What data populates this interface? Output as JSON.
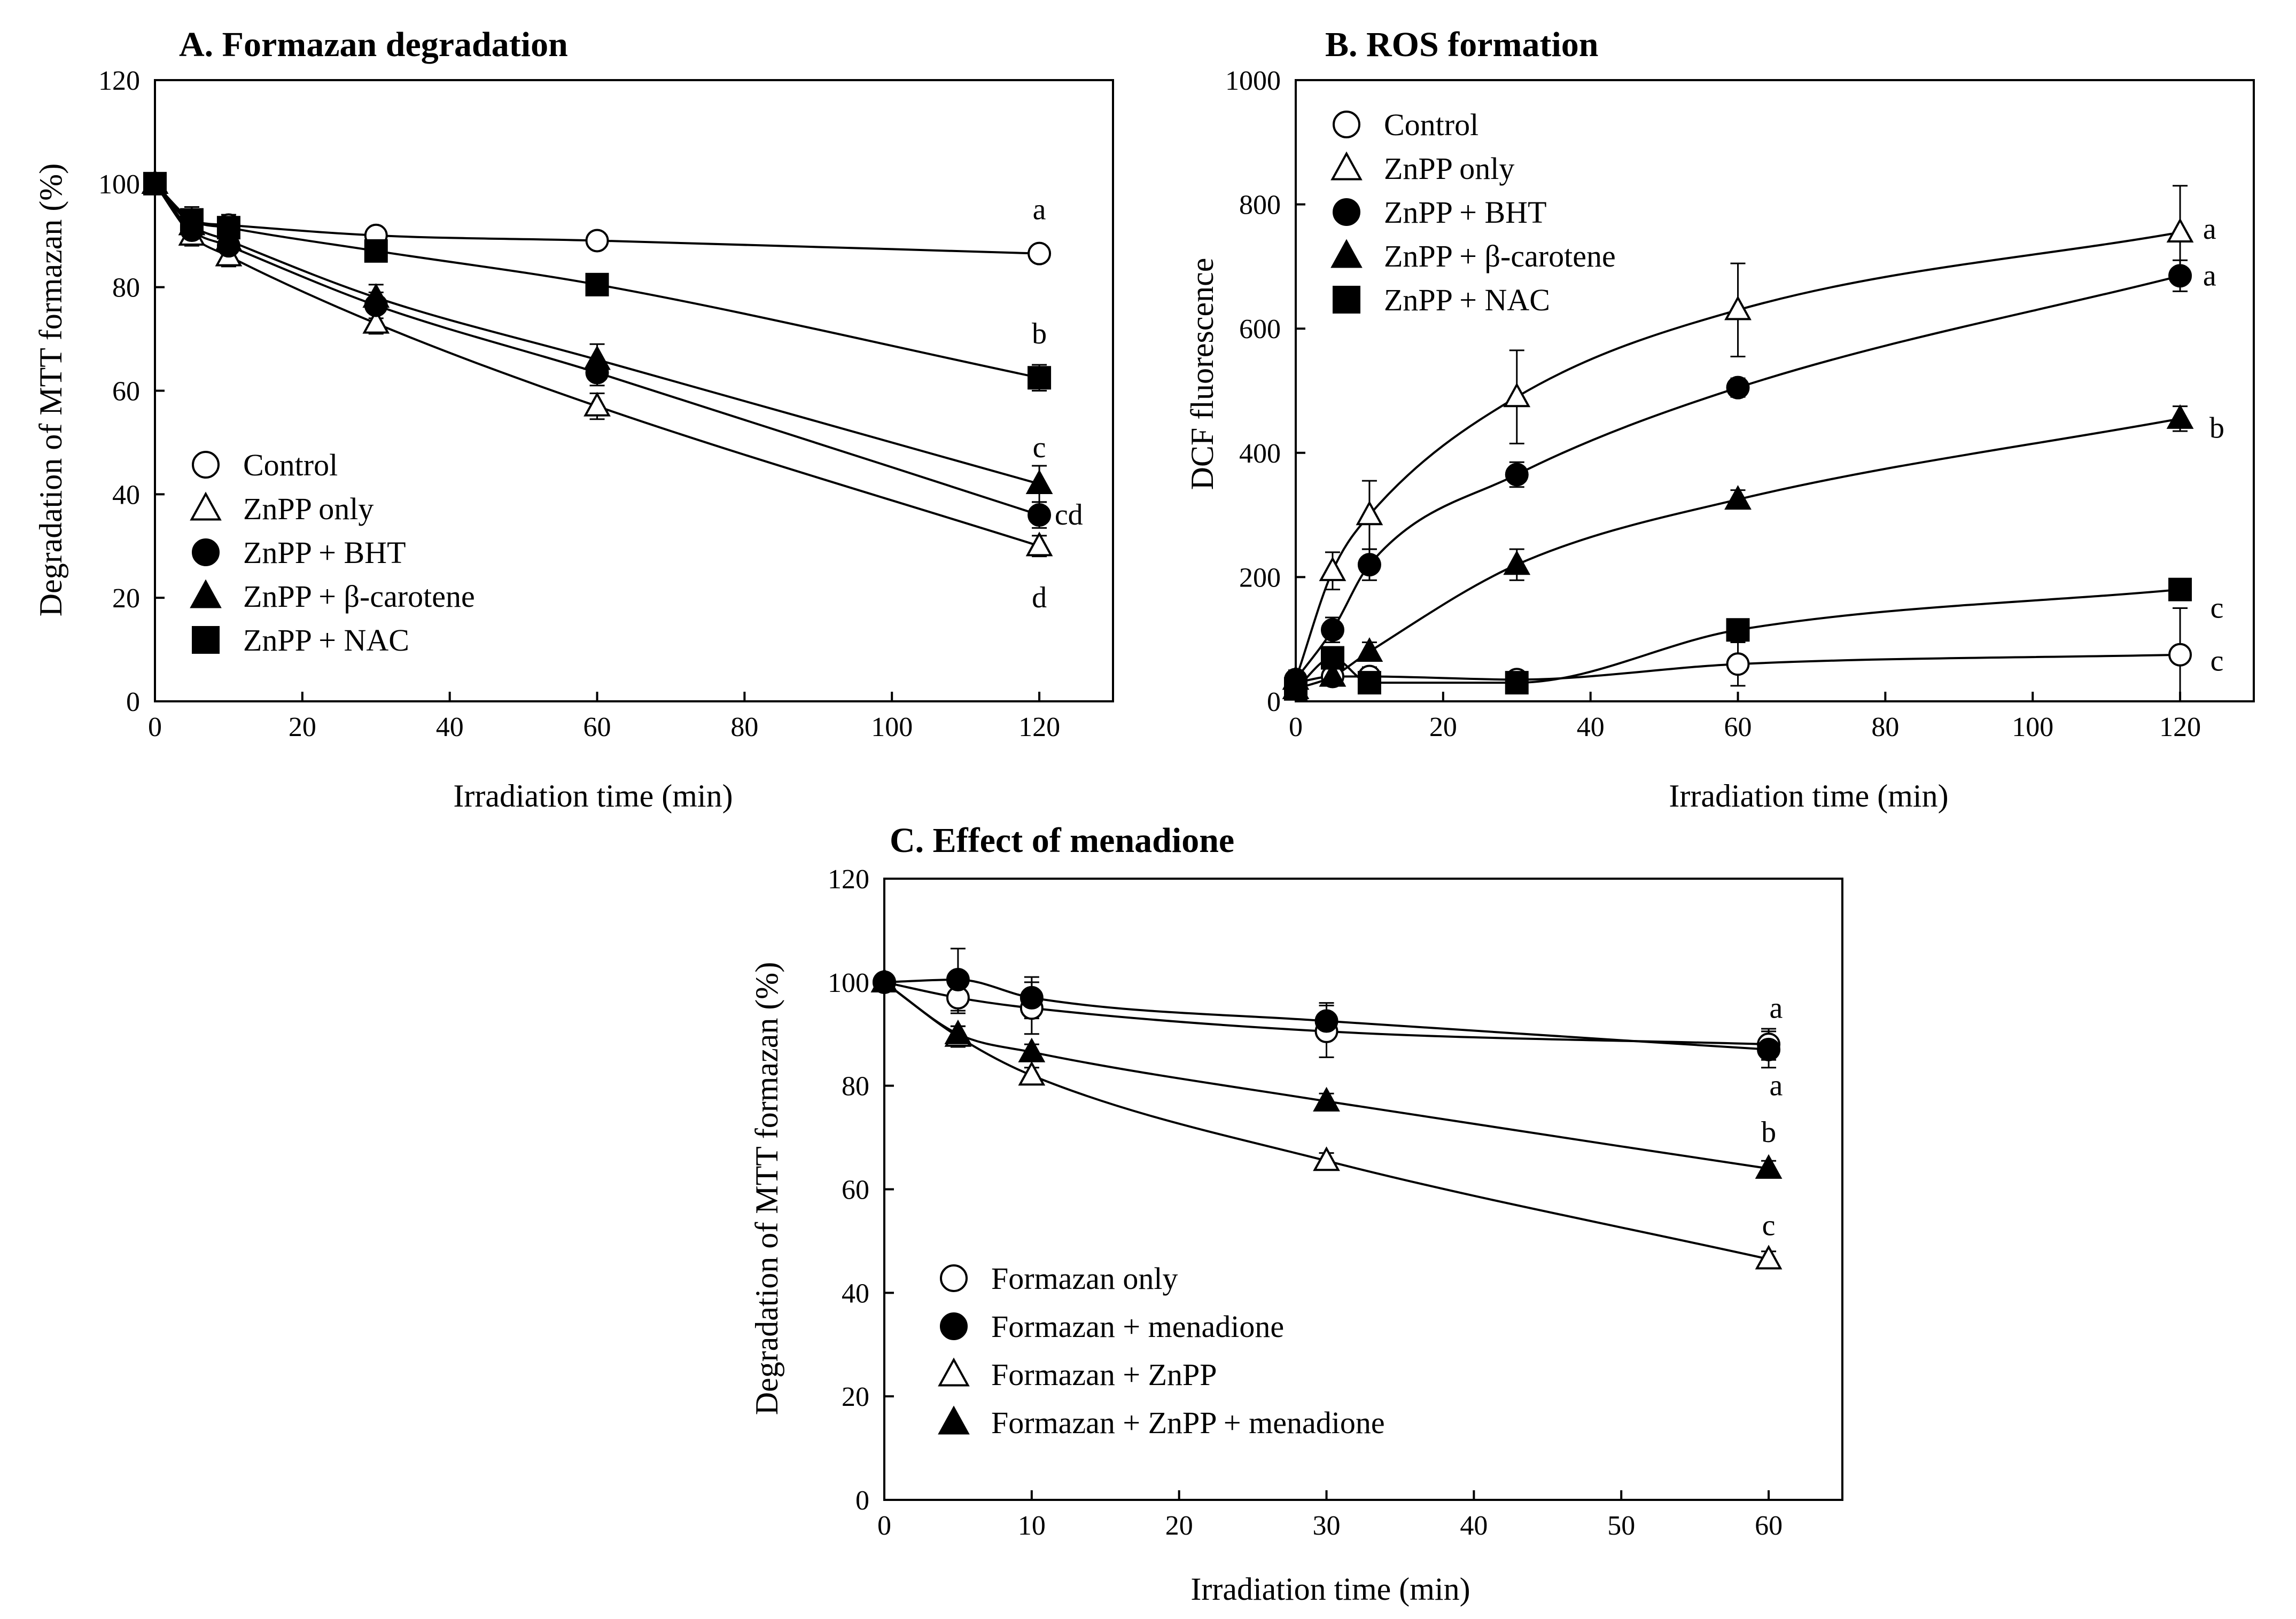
{
  "chart_data": [
    {
      "type": "line",
      "panel": "A",
      "title": "A. Formazan degradation",
      "xlabel": "Irradiation time (min)",
      "ylabel": "Degradation of MTT formazan (%)",
      "xlim": [
        0,
        130
      ],
      "ylim": [
        0,
        120
      ],
      "xticks": [
        0,
        20,
        40,
        60,
        80,
        100,
        120
      ],
      "yticks": [
        0,
        20,
        40,
        60,
        80,
        100,
        120
      ],
      "legend_position": "lower-left",
      "series": [
        {
          "name": "Control",
          "marker": "circle-open",
          "x": [
            0,
            5,
            10,
            30,
            60,
            120
          ],
          "y": [
            100,
            93,
            92,
            90,
            89,
            86.5
          ],
          "err": [
            2,
            2,
            1.5,
            1,
            1.5,
            1
          ]
        },
        {
          "name": "ZnPP only",
          "marker": "triangle-open",
          "x": [
            0,
            5,
            10,
            30,
            60,
            120
          ],
          "y": [
            100,
            90,
            86,
            73,
            57,
            30
          ],
          "err": [
            2,
            2,
            2,
            2,
            2.5,
            2
          ]
        },
        {
          "name": "ZnPP + BHT",
          "marker": "circle-filled",
          "x": [
            0,
            5,
            10,
            30,
            60,
            120
          ],
          "y": [
            100,
            91,
            88,
            76.5,
            63.5,
            36
          ],
          "err": [
            2,
            2,
            2,
            2.5,
            2.5,
            2.5
          ]
        },
        {
          "name": "ZnPP + β-carotene",
          "marker": "triangle-filled",
          "x": [
            0,
            5,
            10,
            30,
            60,
            120
          ],
          "y": [
            100,
            92,
            89,
            78,
            66,
            42
          ],
          "err": [
            2,
            2,
            2,
            2.5,
            3,
            3.5
          ]
        },
        {
          "name": "ZnPP + NAC",
          "marker": "square-filled",
          "x": [
            0,
            5,
            10,
            30,
            60,
            120
          ],
          "y": [
            100,
            93,
            91.5,
            87,
            80.5,
            62.5
          ],
          "err": [
            2,
            2.5,
            2.5,
            2,
            1.5,
            2.5
          ]
        }
      ],
      "annotations": [
        {
          "text": "a",
          "x": 120,
          "y": 95
        },
        {
          "text": "b",
          "x": 120,
          "y": 71
        },
        {
          "text": "c",
          "x": 120,
          "y": 49
        },
        {
          "text": "cd",
          "x": 124,
          "y": 36
        },
        {
          "text": "d",
          "x": 120,
          "y": 20
        }
      ]
    },
    {
      "type": "line",
      "panel": "B",
      "title": "B. ROS formation",
      "xlabel": "Irradiation time (min)",
      "ylabel": "DCF fluorescence",
      "xlim": [
        0,
        130
      ],
      "ylim": [
        0,
        1000
      ],
      "xticks": [
        0,
        20,
        40,
        60,
        80,
        100,
        120
      ],
      "yticks": [
        0,
        200,
        400,
        600,
        800,
        1000
      ],
      "legend_position": "top-left",
      "series": [
        {
          "name": "Control",
          "marker": "circle-open",
          "x": [
            0,
            5,
            10,
            30,
            60,
            120
          ],
          "y": [
            30,
            40,
            40,
            35,
            60,
            75
          ],
          "err": [
            15,
            15,
            15,
            10,
            35,
            75
          ]
        },
        {
          "name": "ZnPP only",
          "marker": "triangle-open",
          "x": [
            0,
            5,
            10,
            30,
            60,
            120
          ],
          "y": [
            35,
            210,
            300,
            490,
            630,
            755
          ],
          "err": [
            15,
            30,
            55,
            75,
            75,
            75
          ]
        },
        {
          "name": "ZnPP + BHT",
          "marker": "circle-filled",
          "x": [
            0,
            5,
            10,
            30,
            60,
            120
          ],
          "y": [
            35,
            115,
            220,
            365,
            505,
            685
          ],
          "err": [
            15,
            20,
            25,
            20,
            15,
            25
          ]
        },
        {
          "name": "ZnPP + β-carotene",
          "marker": "triangle-filled",
          "x": [
            0,
            5,
            10,
            30,
            60,
            120
          ],
          "y": [
            20,
            40,
            80,
            220,
            325,
            455
          ],
          "err": [
            10,
            10,
            15,
            25,
            15,
            20
          ]
        },
        {
          "name": "ZnPP + NAC",
          "marker": "square-filled",
          "x": [
            0,
            5,
            10,
            30,
            60,
            120
          ],
          "y": [
            20,
            70,
            30,
            30,
            115,
            180
          ],
          "err": [
            10,
            10,
            10,
            10,
            10,
            10
          ]
        }
      ],
      "annotations": [
        {
          "text": "a",
          "x": 124,
          "y": 760
        },
        {
          "text": "a",
          "x": 124,
          "y": 685
        },
        {
          "text": "b",
          "x": 125,
          "y": 440
        },
        {
          "text": "c",
          "x": 125,
          "y": 150
        },
        {
          "text": "c",
          "x": 125,
          "y": 65
        }
      ]
    },
    {
      "type": "line",
      "panel": "C",
      "title": "C. Effect of menadione",
      "xlabel": "Irradiation time (min)",
      "ylabel": "Degradation of MTT formazan (%)",
      "xlim": [
        0,
        65
      ],
      "ylim": [
        0,
        120
      ],
      "xticks": [
        0,
        10,
        20,
        30,
        40,
        50,
        60
      ],
      "yticks": [
        0,
        20,
        40,
        60,
        80,
        100,
        120
      ],
      "legend_position": "lower-left",
      "series": [
        {
          "name": "Formazan only",
          "marker": "circle-open",
          "x": [
            0,
            5,
            10,
            30,
            60
          ],
          "y": [
            100,
            97,
            95,
            90.5,
            88
          ],
          "err": [
            1,
            3,
            5,
            5,
            3
          ]
        },
        {
          "name": "Formazan + menadione",
          "marker": "circle-filled",
          "x": [
            0,
            5,
            10,
            30,
            60
          ],
          "y": [
            100,
            100.5,
            97,
            92.5,
            87
          ],
          "err": [
            1,
            6,
            4,
            3.5,
            3.5
          ]
        },
        {
          "name": "Formazan + ZnPP",
          "marker": "triangle-open",
          "x": [
            0,
            5,
            10,
            30,
            60
          ],
          "y": [
            100,
            89.5,
            82,
            65.5,
            46.5
          ],
          "err": [
            1,
            2,
            1.5,
            1.5,
            1.5
          ]
        },
        {
          "name": "Formazan + ZnPP + menadione",
          "marker": "triangle-filled",
          "x": [
            0,
            5,
            10,
            30,
            60
          ],
          "y": [
            100,
            90,
            86.5,
            77,
            64
          ],
          "err": [
            1,
            1.5,
            1.5,
            1.5,
            1.5
          ]
        }
      ],
      "annotations": [
        {
          "text": "a",
          "x": 60.5,
          "y": 95
        },
        {
          "text": "a",
          "x": 60.5,
          "y": 80
        },
        {
          "text": "b",
          "x": 60,
          "y": 71
        },
        {
          "text": "c",
          "x": 60,
          "y": 53
        }
      ]
    }
  ]
}
